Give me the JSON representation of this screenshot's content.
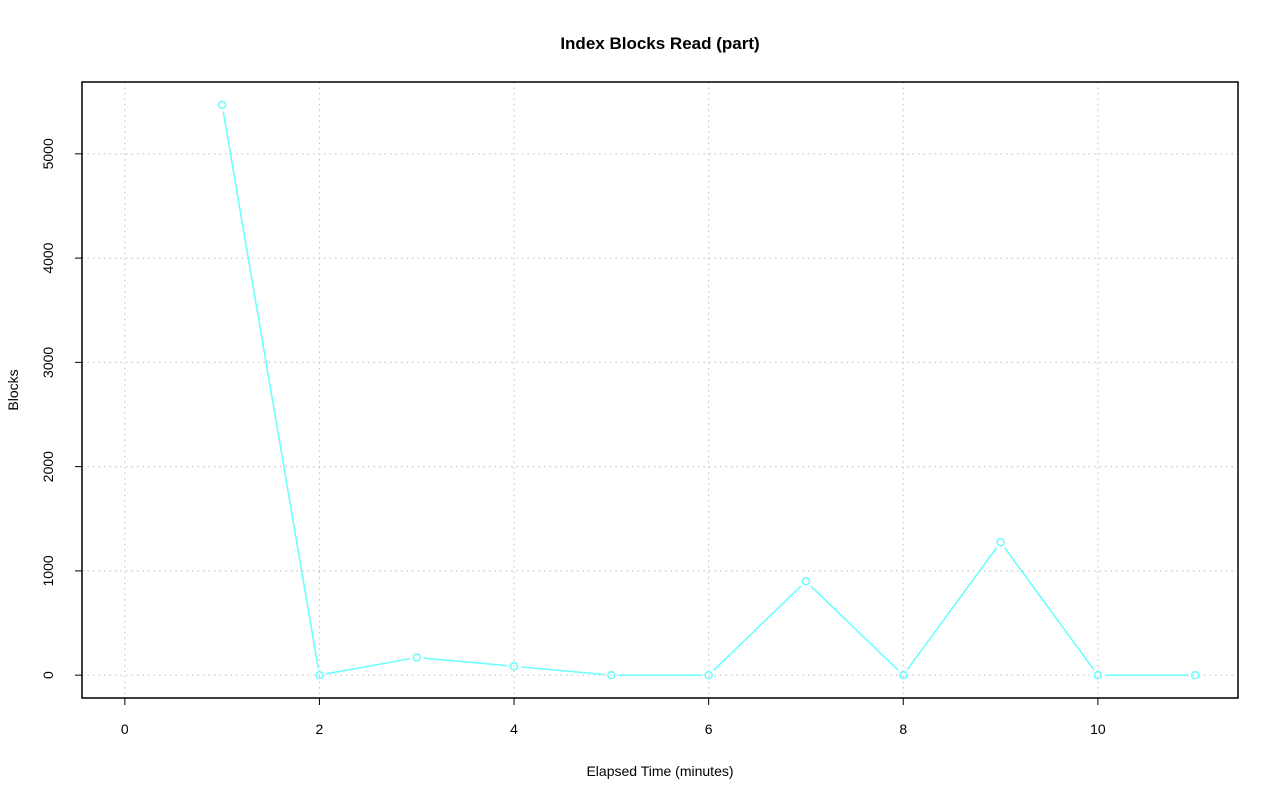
{
  "chart_data": {
    "type": "line",
    "title": "Index Blocks Read (part)",
    "xlabel": "Elapsed Time (minutes)",
    "ylabel": "Blocks",
    "x": [
      1,
      2,
      3,
      4,
      5,
      6,
      7,
      8,
      9,
      10,
      11
    ],
    "series": [
      {
        "values": [
          5470,
          0,
          170,
          85,
          0,
          0,
          900,
          0,
          1275,
          0,
          0
        ],
        "color": "#66ffff"
      }
    ],
    "xlim": [
      -0.44,
      11.44
    ],
    "ylim": [
      -219,
      5689
    ],
    "xticks": [
      "0",
      "2",
      "4",
      "6",
      "8",
      "10"
    ],
    "yticks": [
      "0",
      "1000",
      "2000",
      "3000",
      "4000",
      "5000"
    ],
    "grid": true,
    "markers": "open-circle"
  }
}
